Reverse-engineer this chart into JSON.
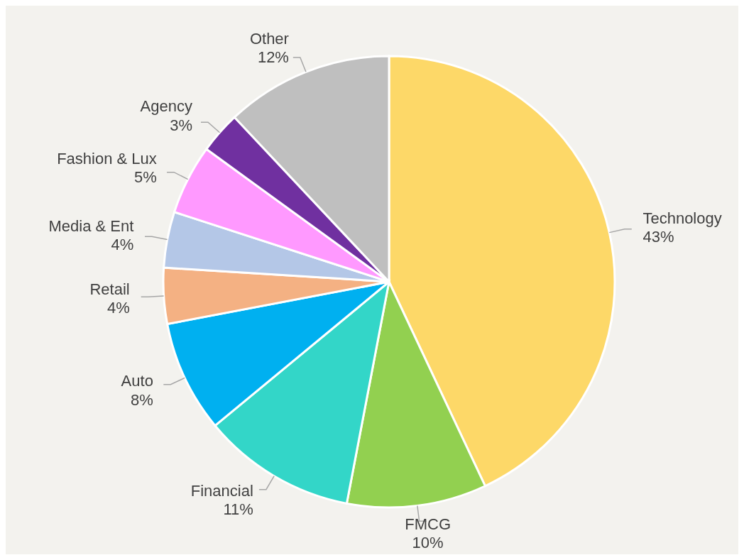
{
  "chart_data": {
    "type": "pie",
    "categories": [
      "Technology",
      "FMCG",
      "Financial",
      "Auto",
      "Retail",
      "Media & Ent",
      "Fashion & Lux",
      "Agency",
      "Other"
    ],
    "values": [
      43,
      10,
      11,
      8,
      4,
      4,
      5,
      3,
      12
    ],
    "value_labels": [
      "43%",
      "10%",
      "11%",
      "8%",
      "4%",
      "4%",
      "5%",
      "3%",
      "12%"
    ],
    "colors": [
      "#fdd868",
      "#92d050",
      "#33d6c8",
      "#00b0f0",
      "#f4b183",
      "#b4c7e7",
      "#ff99ff",
      "#7030a0",
      "#bfbfbf"
    ]
  }
}
